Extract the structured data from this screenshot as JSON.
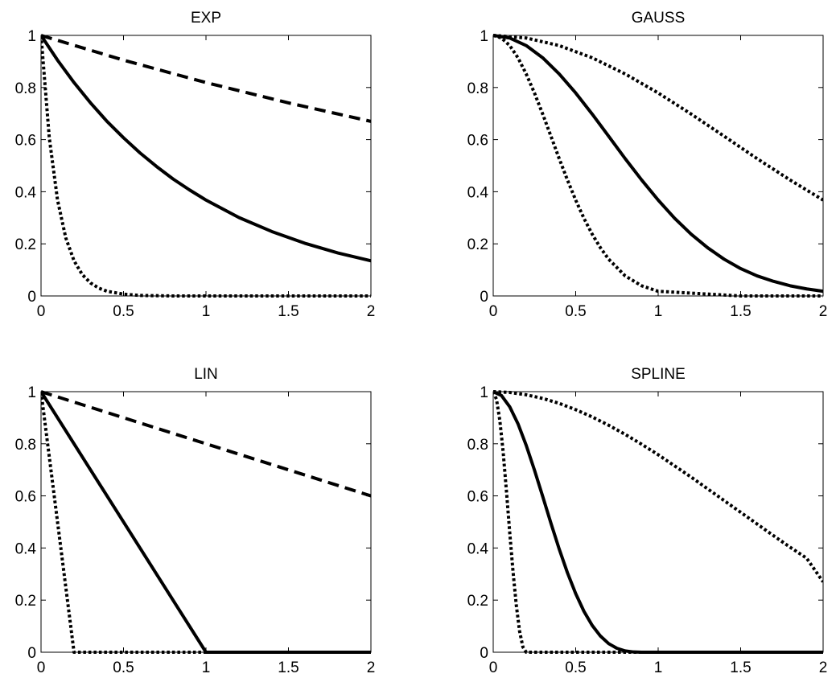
{
  "chart_data": [
    {
      "type": "line",
      "title": "EXP",
      "xlim": [
        0,
        2
      ],
      "ylim": [
        0,
        1
      ],
      "x_ticks": [
        "0",
        "0.5",
        "1",
        "1.5",
        "2"
      ],
      "y_ticks": [
        "0",
        "0.2",
        "0.4",
        "0.6",
        "0.8",
        "1"
      ],
      "grid": false,
      "series": [
        {
          "style": "solid",
          "x": [
            0,
            0.1,
            0.2,
            0.3,
            0.4,
            0.5,
            0.6,
            0.7,
            0.8,
            0.9,
            1.0,
            1.2,
            1.4,
            1.6,
            1.8,
            2.0
          ],
          "y": [
            1,
            0.905,
            0.819,
            0.741,
            0.67,
            0.607,
            0.549,
            0.497,
            0.449,
            0.407,
            0.368,
            0.301,
            0.247,
            0.202,
            0.165,
            0.135
          ]
        },
        {
          "style": "dashed",
          "x": [
            0,
            0.5,
            1.0,
            1.5,
            2.0
          ],
          "y": [
            1,
            0.905,
            0.819,
            0.741,
            0.67
          ]
        },
        {
          "style": "dotted",
          "x": [
            0,
            0.05,
            0.1,
            0.15,
            0.2,
            0.25,
            0.3,
            0.35,
            0.4,
            0.5,
            0.6,
            0.7,
            0.8,
            1.0,
            1.2,
            1.5,
            2.0
          ],
          "y": [
            1,
            0.607,
            0.368,
            0.223,
            0.135,
            0.082,
            0.05,
            0.03,
            0.018,
            0.007,
            0.002,
            0.001,
            0.0,
            0.0,
            0.0,
            0.0,
            0.0
          ]
        }
      ]
    },
    {
      "type": "line",
      "title": "GAUSS",
      "xlim": [
        0,
        2
      ],
      "ylim": [
        0,
        1
      ],
      "x_ticks": [
        "0",
        "0.5",
        "1",
        "1.5",
        "2"
      ],
      "y_ticks": [
        "0",
        "0.2",
        "0.4",
        "0.6",
        "0.8",
        "1"
      ],
      "grid": false,
      "series": [
        {
          "style": "solid",
          "x": [
            0,
            0.1,
            0.2,
            0.3,
            0.4,
            0.5,
            0.6,
            0.7,
            0.8,
            0.9,
            1.0,
            1.1,
            1.2,
            1.3,
            1.4,
            1.5,
            1.6,
            1.7,
            1.8,
            1.9,
            2.0
          ],
          "y": [
            1,
            0.99,
            0.961,
            0.914,
            0.852,
            0.779,
            0.698,
            0.613,
            0.527,
            0.445,
            0.368,
            0.298,
            0.237,
            0.185,
            0.141,
            0.105,
            0.077,
            0.056,
            0.039,
            0.027,
            0.018
          ]
        },
        {
          "style": "dotted",
          "x": [
            0,
            0.2,
            0.4,
            0.6,
            0.8,
            1.0,
            1.2,
            1.4,
            1.6,
            1.8,
            2.0
          ],
          "y": [
            1,
            0.99,
            0.961,
            0.914,
            0.852,
            0.779,
            0.698,
            0.613,
            0.527,
            0.445,
            0.368
          ]
        },
        {
          "style": "dotted",
          "x": [
            0,
            0.05,
            0.1,
            0.15,
            0.2,
            0.25,
            0.3,
            0.35,
            0.4,
            0.45,
            0.5,
            0.55,
            0.6,
            0.65,
            0.7,
            0.8,
            0.9,
            1.0,
            1.5,
            2.0
          ],
          "y": [
            1,
            0.99,
            0.961,
            0.914,
            0.852,
            0.779,
            0.698,
            0.613,
            0.527,
            0.445,
            0.368,
            0.298,
            0.237,
            0.185,
            0.141,
            0.077,
            0.039,
            0.018,
            0.0,
            0.0
          ]
        }
      ]
    },
    {
      "type": "line",
      "title": "LIN",
      "xlim": [
        0,
        2
      ],
      "ylim": [
        0,
        1
      ],
      "x_ticks": [
        "0",
        "0.5",
        "1",
        "1.5",
        "2"
      ],
      "y_ticks": [
        "0",
        "0.2",
        "0.4",
        "0.6",
        "0.8",
        "1"
      ],
      "grid": false,
      "series": [
        {
          "style": "solid",
          "x": [
            0,
            1,
            2
          ],
          "y": [
            1,
            0,
            0
          ]
        },
        {
          "style": "dashed",
          "x": [
            0,
            2
          ],
          "y": [
            1,
            0.6
          ]
        },
        {
          "style": "dotted",
          "x": [
            0,
            0.2,
            2
          ],
          "y": [
            1,
            0,
            0
          ]
        }
      ]
    },
    {
      "type": "line",
      "title": "SPLINE",
      "xlim": [
        0,
        2
      ],
      "ylim": [
        0,
        1
      ],
      "x_ticks": [
        "0",
        "0.5",
        "1",
        "1.5",
        "2"
      ],
      "y_ticks": [
        "0",
        "0.2",
        "0.4",
        "0.6",
        "0.8",
        "1"
      ],
      "grid": false,
      "series": [
        {
          "style": "solid",
          "x": [
            0,
            0.05,
            0.1,
            0.15,
            0.2,
            0.25,
            0.3,
            0.35,
            0.4,
            0.45,
            0.5,
            0.55,
            0.6,
            0.65,
            0.7,
            0.75,
            0.8,
            0.85,
            0.9,
            1.0,
            1.5,
            2.0
          ],
          "y": [
            1,
            0.985,
            0.942,
            0.877,
            0.794,
            0.699,
            0.598,
            0.495,
            0.396,
            0.305,
            0.225,
            0.157,
            0.103,
            0.062,
            0.033,
            0.015,
            0.005,
            0.001,
            0.0,
            0.0,
            0.0,
            0.0
          ]
        },
        {
          "style": "dotted",
          "x": [
            0,
            0.1,
            0.2,
            0.3,
            0.4,
            0.5,
            0.6,
            0.7,
            0.8,
            0.9,
            1.0,
            1.1,
            1.2,
            1.3,
            1.4,
            1.5,
            1.6,
            1.7,
            1.8,
            1.9,
            2.0
          ],
          "y": [
            1,
            0.997,
            0.988,
            0.974,
            0.955,
            0.931,
            0.903,
            0.871,
            0.836,
            0.798,
            0.758,
            0.715,
            0.672,
            0.627,
            0.582,
            0.537,
            0.492,
            0.447,
            0.403,
            0.361,
            0.27
          ]
        },
        {
          "style": "dotted",
          "x": [
            0,
            0.02,
            0.04,
            0.06,
            0.08,
            0.1,
            0.12,
            0.14,
            0.16,
            0.18,
            0.2,
            2.0
          ],
          "y": [
            1,
            0.97,
            0.89,
            0.77,
            0.62,
            0.46,
            0.31,
            0.18,
            0.08,
            0.02,
            0.0,
            0.0
          ]
        }
      ]
    }
  ]
}
